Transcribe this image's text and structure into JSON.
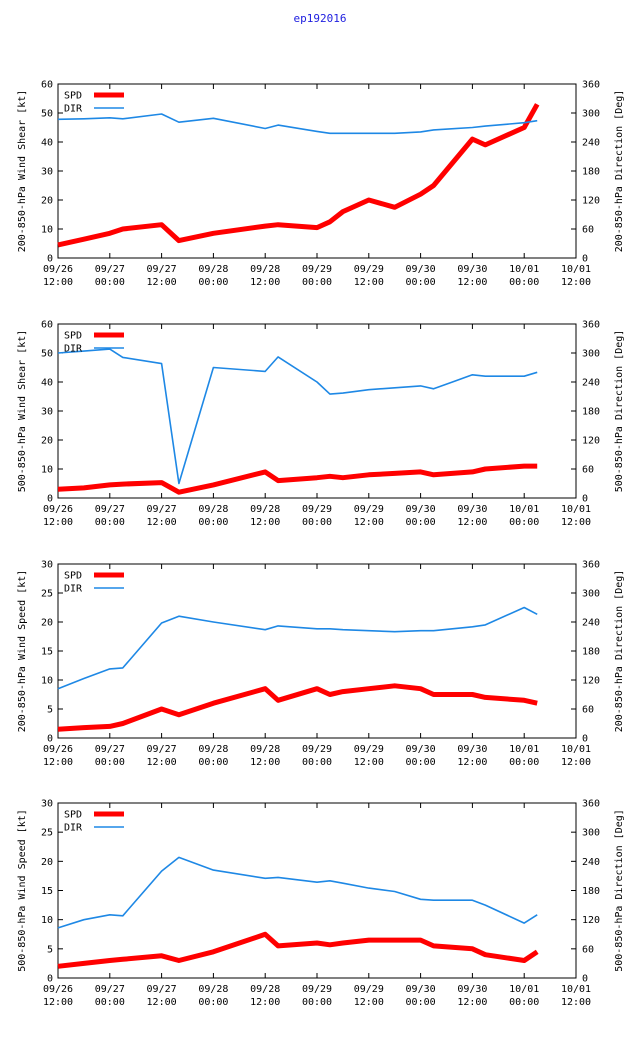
{
  "page_title": "ep192016",
  "colors": {
    "spd": "#ff0000",
    "dir": "#1e88e5",
    "axis": "#000000",
    "title": "#2020e0"
  },
  "chart_data": [
    {
      "type": "line",
      "ylabel": "200-850-hPa Wind Shear [kt]",
      "y2label": "200-850-hPa Direction [Deg]",
      "ylim": [
        0,
        60
      ],
      "yticks": [
        0,
        10,
        20,
        30,
        40,
        50,
        60
      ],
      "y2lim": [
        0,
        360
      ],
      "y2ticks": [
        0,
        60,
        120,
        180,
        240,
        300,
        360
      ],
      "xlim": [
        0,
        120
      ],
      "xticks": [
        0,
        12,
        24,
        36,
        48,
        60,
        72,
        84,
        96,
        108,
        120
      ],
      "xticklabels": [
        [
          "09/26",
          "12:00"
        ],
        [
          "09/27",
          "00:00"
        ],
        [
          "09/27",
          "12:00"
        ],
        [
          "09/28",
          "00:00"
        ],
        [
          "09/28",
          "12:00"
        ],
        [
          "09/29",
          "00:00"
        ],
        [
          "09/29",
          "12:00"
        ],
        [
          "09/30",
          "00:00"
        ],
        [
          "09/30",
          "12:00"
        ],
        [
          "10/01",
          "00:00"
        ],
        [
          "10/01",
          "12:00"
        ]
      ],
      "legend": [
        "SPD",
        "DIR"
      ],
      "series": [
        {
          "name": "SPD",
          "axis": "left",
          "x": [
            0,
            6,
            12,
            15,
            24,
            28,
            36,
            48,
            51,
            60,
            63,
            66,
            72,
            78,
            84,
            87,
            96,
            99,
            108,
            111
          ],
          "values": [
            4.5,
            6.5,
            8.5,
            10,
            11.5,
            6,
            8.5,
            11,
            11.5,
            10.5,
            12.5,
            16,
            20,
            17.5,
            22,
            25,
            41,
            39,
            45,
            53
          ]
        },
        {
          "name": "DIR",
          "axis": "right",
          "x": [
            0,
            6,
            12,
            15,
            24,
            28,
            36,
            48,
            51,
            60,
            63,
            66,
            72,
            78,
            84,
            87,
            96,
            99,
            108,
            111
          ],
          "values": [
            287,
            288,
            290,
            288,
            298,
            281,
            289,
            268,
            275,
            262,
            258,
            258,
            258,
            258,
            261,
            265,
            270,
            273,
            280,
            284
          ]
        }
      ]
    },
    {
      "type": "line",
      "ylabel": "500-850-hPa Wind Shear [kt]",
      "y2label": "500-850-hPa Direction [Deg]",
      "ylim": [
        0,
        60
      ],
      "yticks": [
        0,
        10,
        20,
        30,
        40,
        50,
        60
      ],
      "y2lim": [
        0,
        360
      ],
      "y2ticks": [
        0,
        60,
        120,
        180,
        240,
        300,
        360
      ],
      "xlim": [
        0,
        120
      ],
      "xticks": [
        0,
        12,
        24,
        36,
        48,
        60,
        72,
        84,
        96,
        108,
        120
      ],
      "xticklabels": [
        [
          "09/26",
          "12:00"
        ],
        [
          "09/27",
          "00:00"
        ],
        [
          "09/27",
          "12:00"
        ],
        [
          "09/28",
          "00:00"
        ],
        [
          "09/28",
          "12:00"
        ],
        [
          "09/29",
          "00:00"
        ],
        [
          "09/29",
          "12:00"
        ],
        [
          "09/30",
          "00:00"
        ],
        [
          "09/30",
          "12:00"
        ],
        [
          "10/01",
          "00:00"
        ],
        [
          "10/01",
          "12:00"
        ]
      ],
      "legend": [
        "SPD",
        "DIR"
      ],
      "series": [
        {
          "name": "SPD",
          "axis": "left",
          "x": [
            0,
            6,
            12,
            15,
            24,
            28,
            36,
            48,
            51,
            60,
            63,
            66,
            72,
            78,
            84,
            87,
            96,
            99,
            108,
            111
          ],
          "values": [
            3,
            3.5,
            4.5,
            4.8,
            5.3,
            2,
            4.5,
            9,
            6,
            7,
            7.5,
            7,
            8,
            8.5,
            9,
            8,
            9,
            10,
            11,
            11
          ]
        },
        {
          "name": "DIR",
          "axis": "right",
          "x": [
            0,
            6,
            12,
            15,
            24,
            28,
            36,
            48,
            51,
            60,
            63,
            66,
            72,
            78,
            84,
            87,
            96,
            99,
            108,
            111
          ],
          "values": [
            300,
            304,
            308,
            291,
            278,
            30,
            270,
            262,
            292,
            240,
            215,
            217,
            224,
            228,
            232,
            226,
            255,
            252,
            252,
            260
          ]
        }
      ]
    },
    {
      "type": "line",
      "ylabel": "200-850-hPa Wind Speed [kt]",
      "y2label": "200-850-hPa Direction [Deg]",
      "ylim": [
        0,
        30
      ],
      "yticks": [
        0,
        5,
        10,
        15,
        20,
        25,
        30
      ],
      "y2lim": [
        0,
        360
      ],
      "y2ticks": [
        0,
        60,
        120,
        180,
        240,
        300,
        360
      ],
      "xlim": [
        0,
        120
      ],
      "xticks": [
        0,
        12,
        24,
        36,
        48,
        60,
        72,
        84,
        96,
        108,
        120
      ],
      "xticklabels": [
        [
          "09/26",
          "12:00"
        ],
        [
          "09/27",
          "00:00"
        ],
        [
          "09/27",
          "12:00"
        ],
        [
          "09/28",
          "00:00"
        ],
        [
          "09/28",
          "12:00"
        ],
        [
          "09/29",
          "00:00"
        ],
        [
          "09/29",
          "12:00"
        ],
        [
          "09/30",
          "00:00"
        ],
        [
          "09/30",
          "12:00"
        ],
        [
          "10/01",
          "00:00"
        ],
        [
          "10/01",
          "12:00"
        ]
      ],
      "legend": [
        "SPD",
        "DIR"
      ],
      "series": [
        {
          "name": "SPD",
          "axis": "left",
          "x": [
            0,
            6,
            12,
            15,
            24,
            28,
            36,
            48,
            51,
            60,
            63,
            66,
            72,
            78,
            84,
            87,
            96,
            99,
            108,
            111
          ],
          "values": [
            1.5,
            1.8,
            2,
            2.5,
            5,
            4,
            6,
            8.5,
            6.5,
            8.5,
            7.5,
            8,
            8.5,
            9,
            8.5,
            7.5,
            7.5,
            7,
            6.5,
            6
          ]
        },
        {
          "name": "DIR",
          "axis": "right",
          "x": [
            0,
            6,
            12,
            15,
            24,
            28,
            36,
            48,
            51,
            60,
            63,
            66,
            72,
            78,
            84,
            87,
            96,
            99,
            108,
            111
          ],
          "values": [
            102,
            123,
            143,
            145,
            238,
            252,
            240,
            224,
            232,
            226,
            226,
            224,
            222,
            220,
            222,
            222,
            230,
            234,
            270,
            256
          ]
        }
      ]
    },
    {
      "type": "line",
      "ylabel": "500-850-hPa Wind Speed [kt]",
      "y2label": "500-850-hPa Direction [Deg]",
      "ylim": [
        0,
        30
      ],
      "yticks": [
        0,
        5,
        10,
        15,
        20,
        25,
        30
      ],
      "y2lim": [
        0,
        360
      ],
      "y2ticks": [
        0,
        60,
        120,
        180,
        240,
        300,
        360
      ],
      "xlim": [
        0,
        120
      ],
      "xticks": [
        0,
        12,
        24,
        36,
        48,
        60,
        72,
        84,
        96,
        108,
        120
      ],
      "xticklabels": [
        [
          "09/26",
          "12:00"
        ],
        [
          "09/27",
          "00:00"
        ],
        [
          "09/27",
          "12:00"
        ],
        [
          "09/28",
          "00:00"
        ],
        [
          "09/28",
          "12:00"
        ],
        [
          "09/29",
          "00:00"
        ],
        [
          "09/29",
          "12:00"
        ],
        [
          "09/30",
          "00:00"
        ],
        [
          "09/30",
          "12:00"
        ],
        [
          "10/01",
          "00:00"
        ],
        [
          "10/01",
          "12:00"
        ]
      ],
      "legend": [
        "SPD",
        "DIR"
      ],
      "series": [
        {
          "name": "SPD",
          "axis": "left",
          "x": [
            0,
            6,
            12,
            15,
            24,
            28,
            36,
            48,
            51,
            60,
            63,
            66,
            72,
            78,
            84,
            87,
            96,
            99,
            108,
            111
          ],
          "values": [
            2,
            2.5,
            3,
            3.2,
            3.8,
            3,
            4.5,
            7.5,
            5.5,
            6,
            5.7,
            6,
            6.5,
            6.5,
            6.5,
            5.5,
            5,
            4,
            3,
            4.5
          ]
        },
        {
          "name": "DIR",
          "axis": "right",
          "x": [
            0,
            6,
            12,
            15,
            24,
            28,
            36,
            48,
            51,
            60,
            63,
            66,
            72,
            78,
            84,
            87,
            96,
            99,
            108,
            111
          ],
          "values": [
            103,
            120,
            130,
            128,
            220,
            248,
            222,
            205,
            207,
            197,
            200,
            195,
            185,
            178,
            162,
            160,
            160,
            150,
            113,
            130
          ]
        }
      ]
    }
  ]
}
